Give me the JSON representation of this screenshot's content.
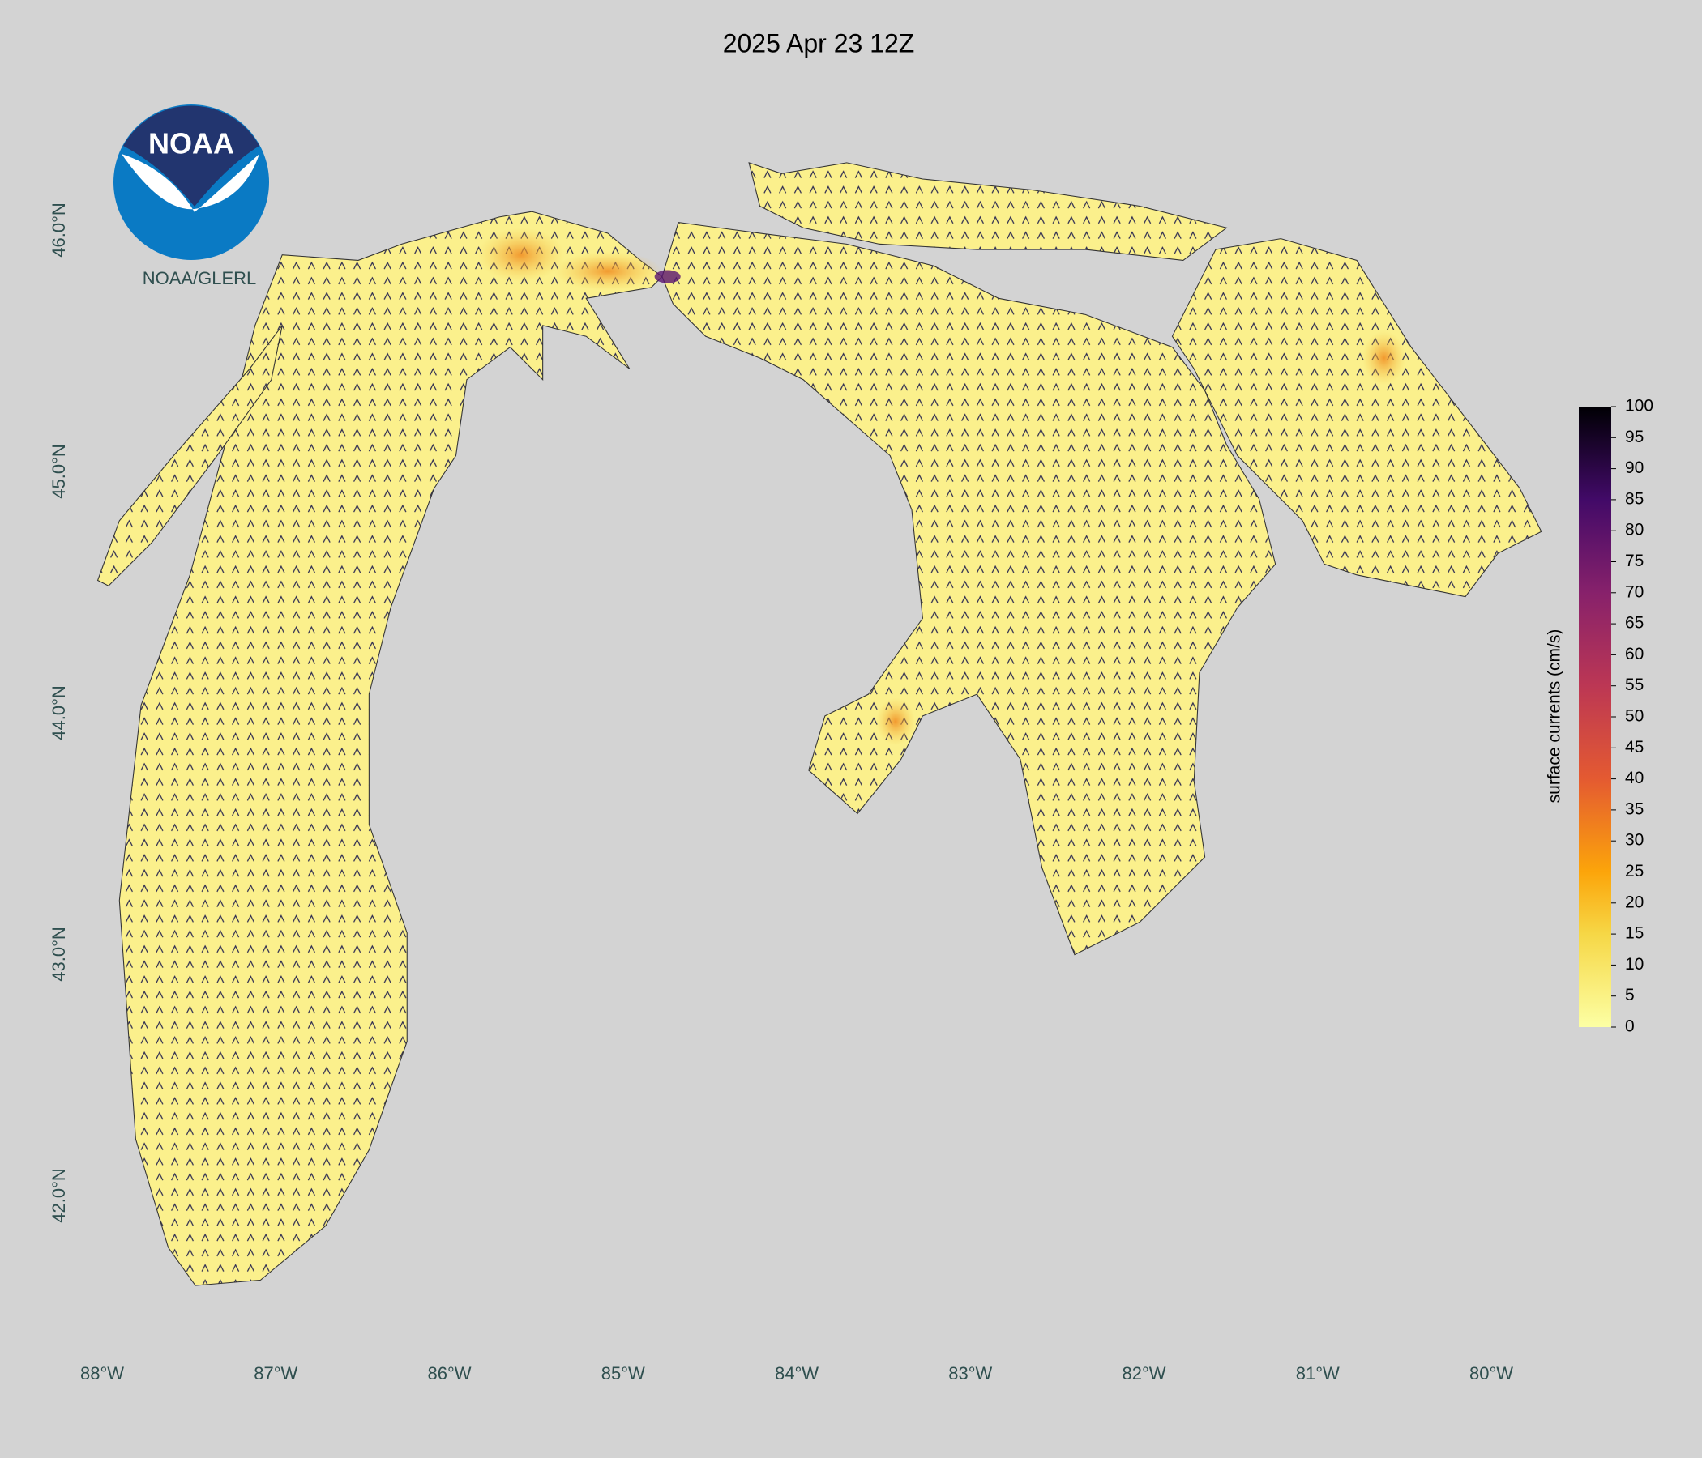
{
  "title": "2025 Apr 23 12Z",
  "logo": {
    "text": "NOAA",
    "caption": "NOAA/GLERL"
  },
  "latitude_labels": [
    "46.0°N",
    "45.0°N",
    "44.0°N",
    "43.0°N",
    "42.0°N"
  ],
  "longitude_labels": [
    "88°W",
    "87°W",
    "86°W",
    "85°W",
    "84°W",
    "83°W",
    "82°W",
    "81°W",
    "80°W"
  ],
  "colorbar": {
    "label": "surface currents (cm/s)",
    "range": [
      0,
      100
    ],
    "ticks": [
      0,
      5,
      10,
      15,
      20,
      25,
      30,
      35,
      40,
      45,
      50,
      55,
      60,
      65,
      70,
      75,
      80,
      85,
      90,
      95,
      100
    ]
  }
}
